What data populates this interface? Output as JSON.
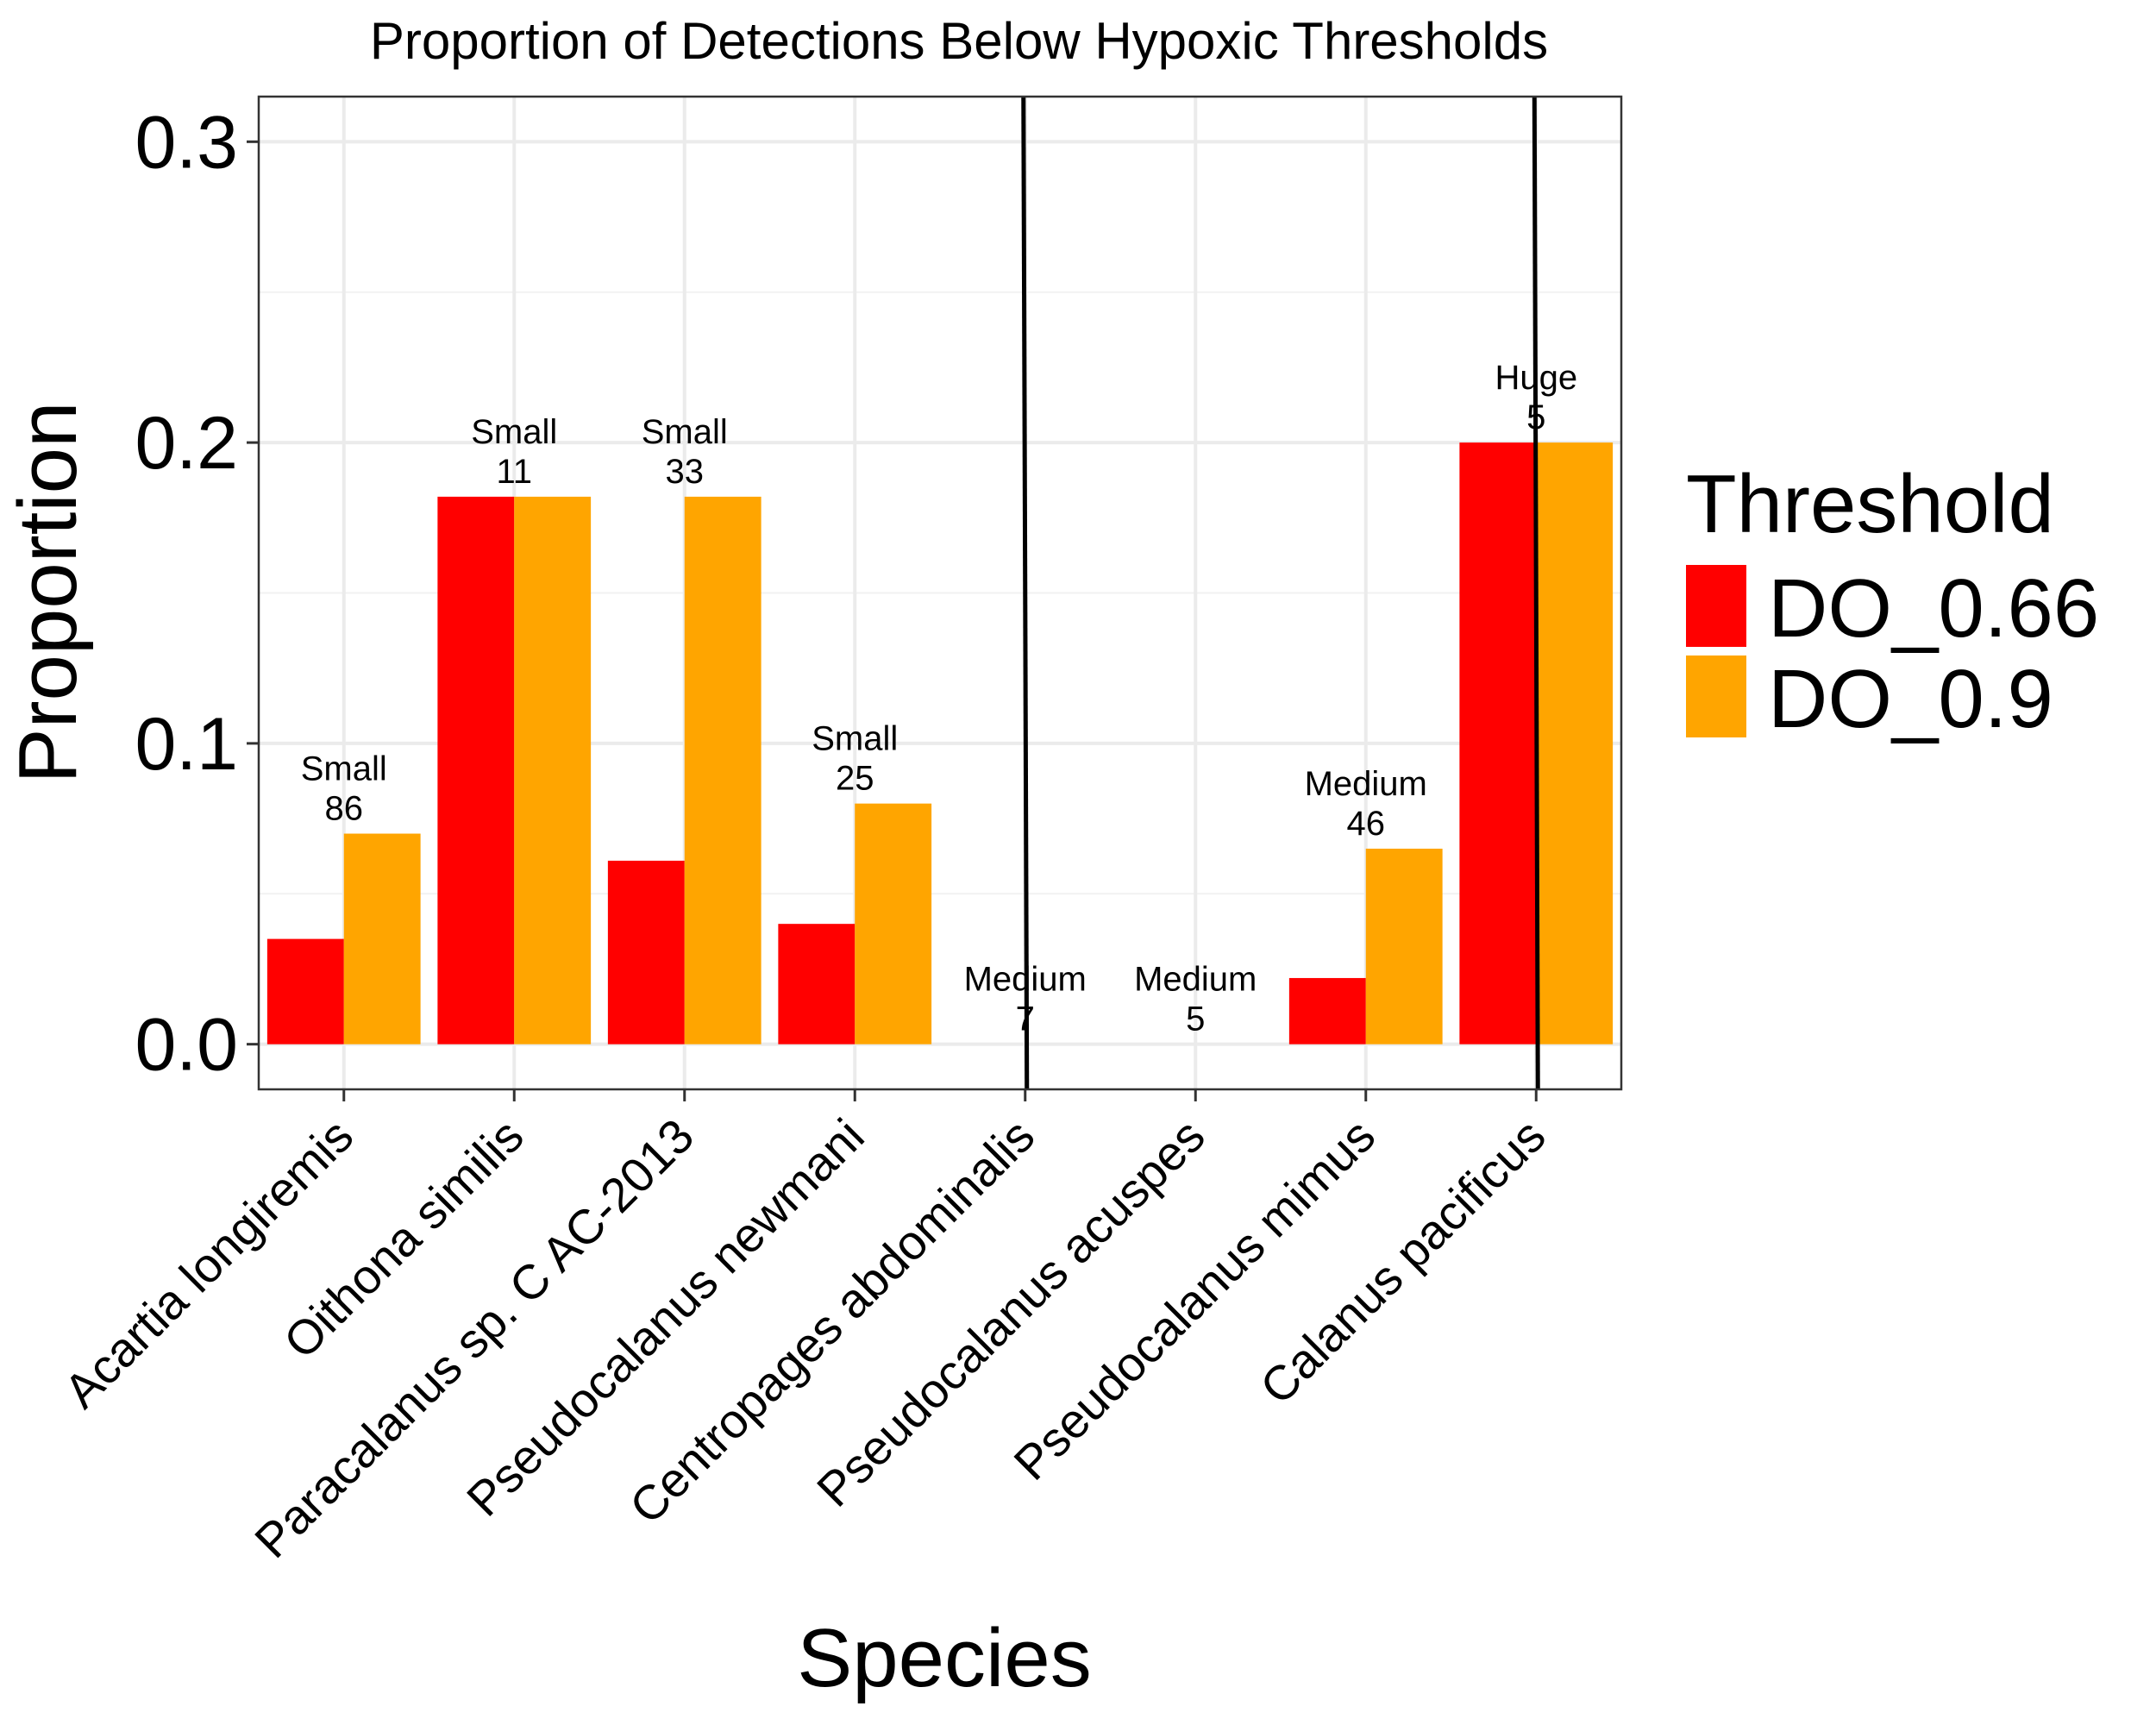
{
  "chart_data": {
    "type": "bar",
    "title": "Proportion of Detections Below Hypoxic Thresholds",
    "xlabel": "Species",
    "ylabel": "Proportion",
    "ylim": [
      -0.015,
      0.315
    ],
    "yticks": [
      "0.0",
      "0.1",
      "0.2",
      "0.3"
    ],
    "ytick_values": [
      0,
      0.1,
      0.2,
      0.3
    ],
    "grid": true,
    "legend_position": "right",
    "categories": [
      "Acartia longiremis",
      "Oithona similis",
      "Paracalanus sp. C AC-2013",
      "Pseudocalanus newmani",
      "Centropages abdominalis",
      "Pseudocalanus acuspes",
      "Pseudocalanus mimus",
      "Calanus pacificus"
    ],
    "series": [
      {
        "name": "DO_0.66",
        "color": "#ff0000",
        "values": [
          0.035,
          0.182,
          0.061,
          0.04,
          0,
          0,
          0.022,
          0.2
        ]
      },
      {
        "name": "DO_0.9",
        "color": "#ffa500",
        "values": [
          0.07,
          0.182,
          0.182,
          0.08,
          0,
          0,
          0.065,
          0.2
        ]
      }
    ],
    "annotations": [
      {
        "size": "Small",
        "n": "86"
      },
      {
        "size": "Small",
        "n": "11"
      },
      {
        "size": "Small",
        "n": "33"
      },
      {
        "size": "Small",
        "n": "25"
      },
      {
        "size": "Medium",
        "n": "7"
      },
      {
        "size": "Medium",
        "n": "5"
      },
      {
        "size": "Medium",
        "n": "46"
      },
      {
        "size": "Huge",
        "n": "5"
      }
    ],
    "separators_between_categories": [
      4.5,
      7.5
    ],
    "legend": {
      "title": "Threshold"
    }
  }
}
